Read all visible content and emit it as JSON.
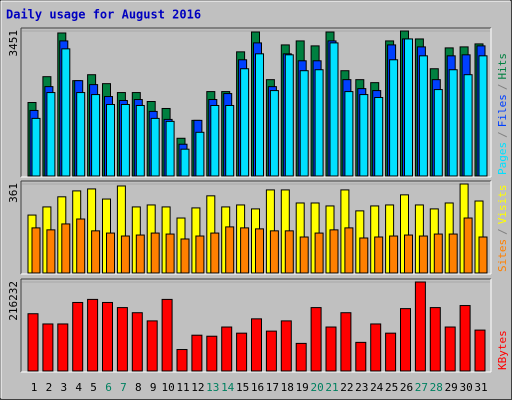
{
  "legend_separator": "/",
  "chart_data": [
    {
      "type": "bar",
      "title": "Daily usage for August 2016",
      "ylim": [
        0,
        3451
      ],
      "yticks": [
        3451
      ],
      "series": [
        {
          "name": "Hits",
          "color": "#008040",
          "values": [
            1749,
            2364,
            3404,
            2269,
            2411,
            2198,
            1986,
            1986,
            1773,
            1607,
            898,
            1324,
            2009,
            2009,
            2955,
            3427,
            2293,
            3120,
            3215,
            3097,
            3427,
            2506,
            2293,
            2222,
            3215,
            3451,
            3262,
            2553,
            3049,
            3073,
            3144
          ]
        },
        {
          "name": "Files",
          "color": "#0040ff",
          "values": [
            1560,
            2127,
            3215,
            2269,
            2175,
            1891,
            1797,
            1820,
            1537,
            1347,
            756,
            1324,
            1820,
            1962,
            2766,
            3168,
            2127,
            2908,
            2742,
            2742,
            3215,
            2293,
            2080,
            2033,
            3120,
            3262,
            3073,
            2293,
            2860,
            2884,
            3097
          ]
        },
        {
          "name": "Pages",
          "color": "#00e0ff",
          "values": [
            1371,
            1986,
            3026,
            1986,
            1938,
            1702,
            1702,
            1678,
            1371,
            1300,
            638,
            1040,
            1678,
            1678,
            2553,
            2908,
            2033,
            2884,
            2506,
            2529,
            3168,
            2009,
            1938,
            1868,
            2766,
            3262,
            2860,
            2057,
            2529,
            2411,
            2860
          ]
        }
      ]
    },
    {
      "type": "bar",
      "ylim": [
        0,
        361
      ],
      "yticks": [
        361
      ],
      "series": [
        {
          "name": "Visits",
          "color": "#ffff00",
          "values": [
            235,
            268,
            309,
            333,
            341,
            300,
            353,
            268,
            276,
            268,
            223,
            264,
            313,
            268,
            276,
            260,
            337,
            337,
            284,
            284,
            272,
            337,
            252,
            272,
            276,
            317,
            276,
            260,
            284,
            361,
            292
          ]
        },
        {
          "name": "Sites",
          "color": "#ff8000",
          "values": [
            183,
            175,
            199,
            219,
            171,
            162,
            150,
            154,
            162,
            158,
            138,
            150,
            162,
            187,
            183,
            179,
            171,
            171,
            146,
            162,
            175,
            183,
            142,
            146,
            150,
            154,
            150,
            158,
            158,
            223,
            146
          ]
        }
      ]
    },
    {
      "type": "bar",
      "ylim": [
        0,
        216232
      ],
      "yticks": [
        216232
      ],
      "categories": [
        "1",
        "2",
        "3",
        "4",
        "5",
        "6",
        "7",
        "8",
        "9",
        "10",
        "11",
        "12",
        "13",
        "14",
        "15",
        "16",
        "17",
        "18",
        "19",
        "20",
        "21",
        "22",
        "23",
        "24",
        "25",
        "26",
        "27",
        "28",
        "29",
        "30",
        "31"
      ],
      "category_colors": [
        "#000000",
        "#000000",
        "#000000",
        "#000000",
        "#000000",
        "#008060",
        "#008060",
        "#000000",
        "#000000",
        "#000000",
        "#000000",
        "#000000",
        "#008060",
        "#008060",
        "#000000",
        "#000000",
        "#000000",
        "#000000",
        "#000000",
        "#008060",
        "#008060",
        "#000000",
        "#000000",
        "#000000",
        "#000000",
        "#000000",
        "#008060",
        "#008060",
        "#000000",
        "#000000",
        "#000000"
      ],
      "series": [
        {
          "name": "KBytes",
          "color": "#ff0000",
          "values": [
            139160,
            114310,
            114310,
            166495,
            173950,
            166495,
            154070,
            141645,
            121765,
            173950,
            52185,
            86975,
            84490,
            106855,
            91945,
            126735,
            96915,
            121765,
            67095,
            154070,
            106855,
            141645,
            69580,
            114310,
            91945,
            151585,
            216232,
            154070,
            106855,
            159040,
            99400
          ]
        }
      ]
    }
  ]
}
